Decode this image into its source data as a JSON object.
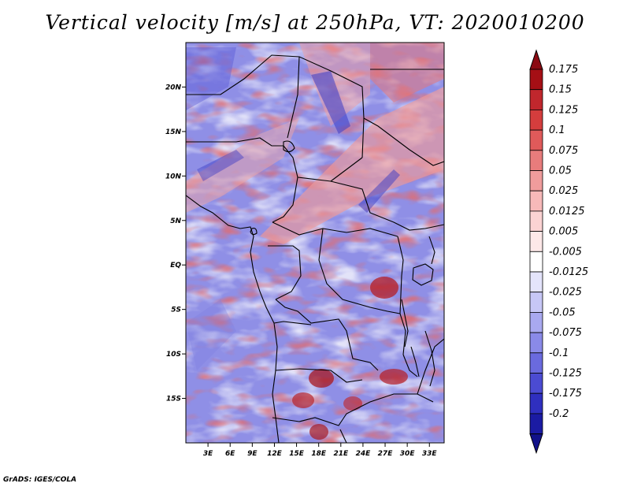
{
  "title": "Vertical velocity [m/s] at 250hPa, VT: 2020010200",
  "credit": "GrADS: IGES/COLA",
  "map": {
    "lon_range": [
      0,
      35
    ],
    "lat_range": [
      -20,
      25
    ],
    "lon_ticks": [
      {
        "value": 3,
        "label": "3E"
      },
      {
        "value": 6,
        "label": "6E"
      },
      {
        "value": 9,
        "label": "9E"
      },
      {
        "value": 12,
        "label": "12E"
      },
      {
        "value": 15,
        "label": "15E"
      },
      {
        "value": 18,
        "label": "18E"
      },
      {
        "value": 21,
        "label": "21E"
      },
      {
        "value": 24,
        "label": "24E"
      },
      {
        "value": 27,
        "label": "27E"
      },
      {
        "value": 30,
        "label": "30E"
      },
      {
        "value": 33,
        "label": "33E"
      }
    ],
    "lat_ticks": [
      {
        "value": 20,
        "label": "20N"
      },
      {
        "value": 15,
        "label": "15N"
      },
      {
        "value": 10,
        "label": "10N"
      },
      {
        "value": 5,
        "label": "5N"
      },
      {
        "value": 0,
        "label": "EQ"
      },
      {
        "value": -5,
        "label": "5S"
      },
      {
        "value": -10,
        "label": "10S"
      },
      {
        "value": -15,
        "label": "15S"
      }
    ]
  },
  "colorbar": {
    "levels": [
      {
        "label": "0.175",
        "color": "#a50f15"
      },
      {
        "label": "0.15",
        "color": "#c0272d"
      },
      {
        "label": "0.125",
        "color": "#d43d3d"
      },
      {
        "label": "0.1",
        "color": "#e05a5a"
      },
      {
        "label": "0.075",
        "color": "#e87c7c"
      },
      {
        "label": "0.05",
        "color": "#f09c9c"
      },
      {
        "label": "0.025",
        "color": "#f7b9b9"
      },
      {
        "label": "0.0125",
        "color": "#fbd3d3"
      },
      {
        "label": "0.005",
        "color": "#fde8e8"
      },
      {
        "label": "-0.005",
        "color": "#ffffff"
      },
      {
        "label": "-0.0125",
        "color": "#e4e4fb"
      },
      {
        "label": "-0.025",
        "color": "#c7c7f6"
      },
      {
        "label": "-0.05",
        "color": "#a9a9f0"
      },
      {
        "label": "-0.075",
        "color": "#8a8ae8"
      },
      {
        "label": "-0.1",
        "color": "#6a6ade"
      },
      {
        "label": "-0.125",
        "color": "#4b4bd2"
      },
      {
        "label": "-0.175",
        "color": "#2f2fbf"
      },
      {
        "label": "-0.2",
        "color": "#1b1ba3"
      }
    ],
    "top_cap_color": "#8b0a12",
    "bottom_cap_color": "#12128a"
  }
}
